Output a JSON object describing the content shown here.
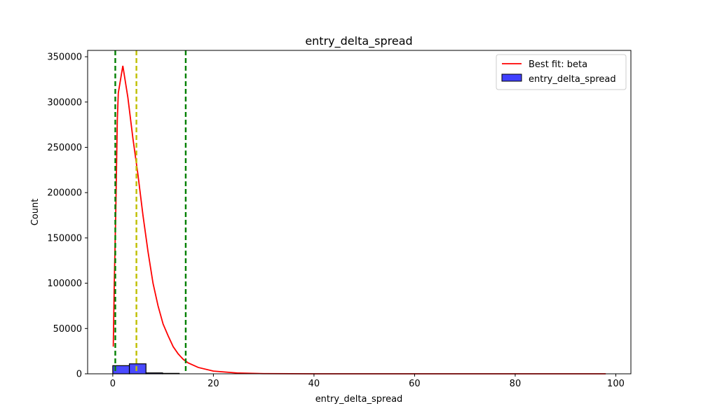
{
  "chart_data": {
    "type": "histogram",
    "title": "entry_delta_spread",
    "xlabel": "entry_delta_spread",
    "ylabel": "Count",
    "xlim": [
      -5,
      103
    ],
    "ylim": [
      0,
      357000
    ],
    "xticks": [
      0,
      20,
      40,
      60,
      80,
      100
    ],
    "yticks": [
      0,
      50000,
      100000,
      150000,
      200000,
      250000,
      300000,
      350000
    ],
    "legend": {
      "placement": "top-right",
      "entries": [
        {
          "label": "Best fit: beta",
          "kind": "line",
          "color": "#ff0000"
        },
        {
          "label": "entry_delta_spread",
          "kind": "patch",
          "color": "#4040ff",
          "edge": "#000000"
        }
      ]
    },
    "histogram": {
      "name": "entry_delta_spread",
      "color": "#4040ff",
      "edgecolor": "#000000",
      "bins": [
        {
          "x0": 0.0,
          "x1": 3.3,
          "count": 9000
        },
        {
          "x0": 3.3,
          "x1": 6.6,
          "count": 11000
        },
        {
          "x0": 6.6,
          "x1": 9.9,
          "count": 1000
        },
        {
          "x0": 9.9,
          "x1": 13.2,
          "count": 500
        }
      ]
    },
    "fit_line": {
      "name": "Best fit: beta",
      "color": "#ff0000",
      "points": [
        [
          0.1,
          30000
        ],
        [
          0.3,
          100000
        ],
        [
          0.6,
          180000
        ],
        [
          0.9,
          280000
        ],
        [
          1.1,
          310000
        ],
        [
          2.0,
          340000
        ],
        [
          3.0,
          305000
        ],
        [
          4.0,
          260000
        ],
        [
          5.0,
          220000
        ],
        [
          6.0,
          175000
        ],
        [
          7.0,
          135000
        ],
        [
          8.0,
          100000
        ],
        [
          9.0,
          75000
        ],
        [
          10.0,
          55000
        ],
        [
          11.0,
          42000
        ],
        [
          12.0,
          30000
        ],
        [
          13.0,
          22000
        ],
        [
          14.0,
          16000
        ],
        [
          15.0,
          12000
        ],
        [
          17.0,
          7000
        ],
        [
          20.0,
          3000
        ],
        [
          25.0,
          800
        ],
        [
          30.0,
          200
        ],
        [
          40.0,
          0
        ],
        [
          60.0,
          0
        ],
        [
          80.0,
          0
        ],
        [
          98.0,
          0
        ]
      ]
    },
    "vlines": [
      {
        "x": 0.5,
        "color": "#008000"
      },
      {
        "x": 4.7,
        "color": "#bfbf00"
      },
      {
        "x": 14.5,
        "color": "#008000"
      }
    ]
  }
}
